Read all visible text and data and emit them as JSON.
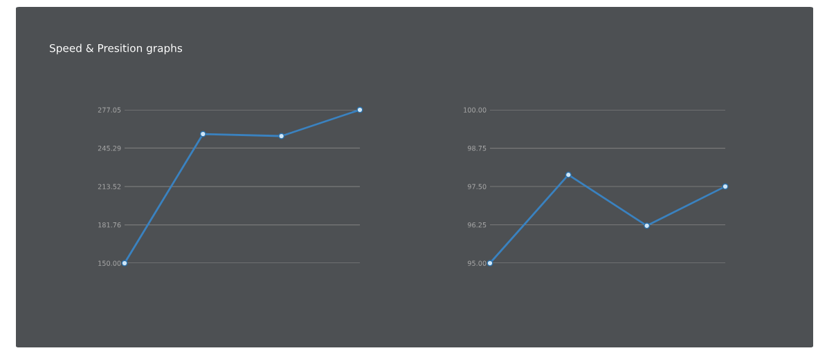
{
  "chart_data": [
    {
      "type": "line",
      "title": "Speed & Presition graphs",
      "categories": [
        null,
        null,
        null,
        null
      ],
      "series": [
        {
          "color": "#3a82c0",
          "values": [
            150.0,
            257.0,
            255.3,
            277.05
          ]
        }
      ],
      "ylim": [
        150.0,
        277.05
      ],
      "yticks": [
        {
          "value": 150.0,
          "label": "150.00"
        },
        {
          "value": 181.76,
          "label": "181.76"
        },
        {
          "value": 213.52,
          "label": "213.52"
        },
        {
          "value": 245.29,
          "label": "245.29"
        },
        {
          "value": 277.05,
          "label": "277.05"
        }
      ],
      "grid": "y",
      "marker": "circle",
      "legend": false
    },
    {
      "type": "line",
      "categories": [
        null,
        null,
        null,
        null
      ],
      "series": [
        {
          "color": "#3a82c0",
          "values": [
            95.0,
            97.88,
            96.22,
            97.5
          ]
        }
      ],
      "ylim": [
        95.0,
        100.0
      ],
      "yticks": [
        {
          "value": 95.0,
          "label": "95.00"
        },
        {
          "value": 96.25,
          "label": "96.25"
        },
        {
          "value": 97.5,
          "label": "97.50"
        },
        {
          "value": 98.75,
          "label": "98.75"
        },
        {
          "value": 100.0,
          "label": "100.00"
        }
      ],
      "grid": "y",
      "marker": "circle",
      "legend": false
    }
  ]
}
